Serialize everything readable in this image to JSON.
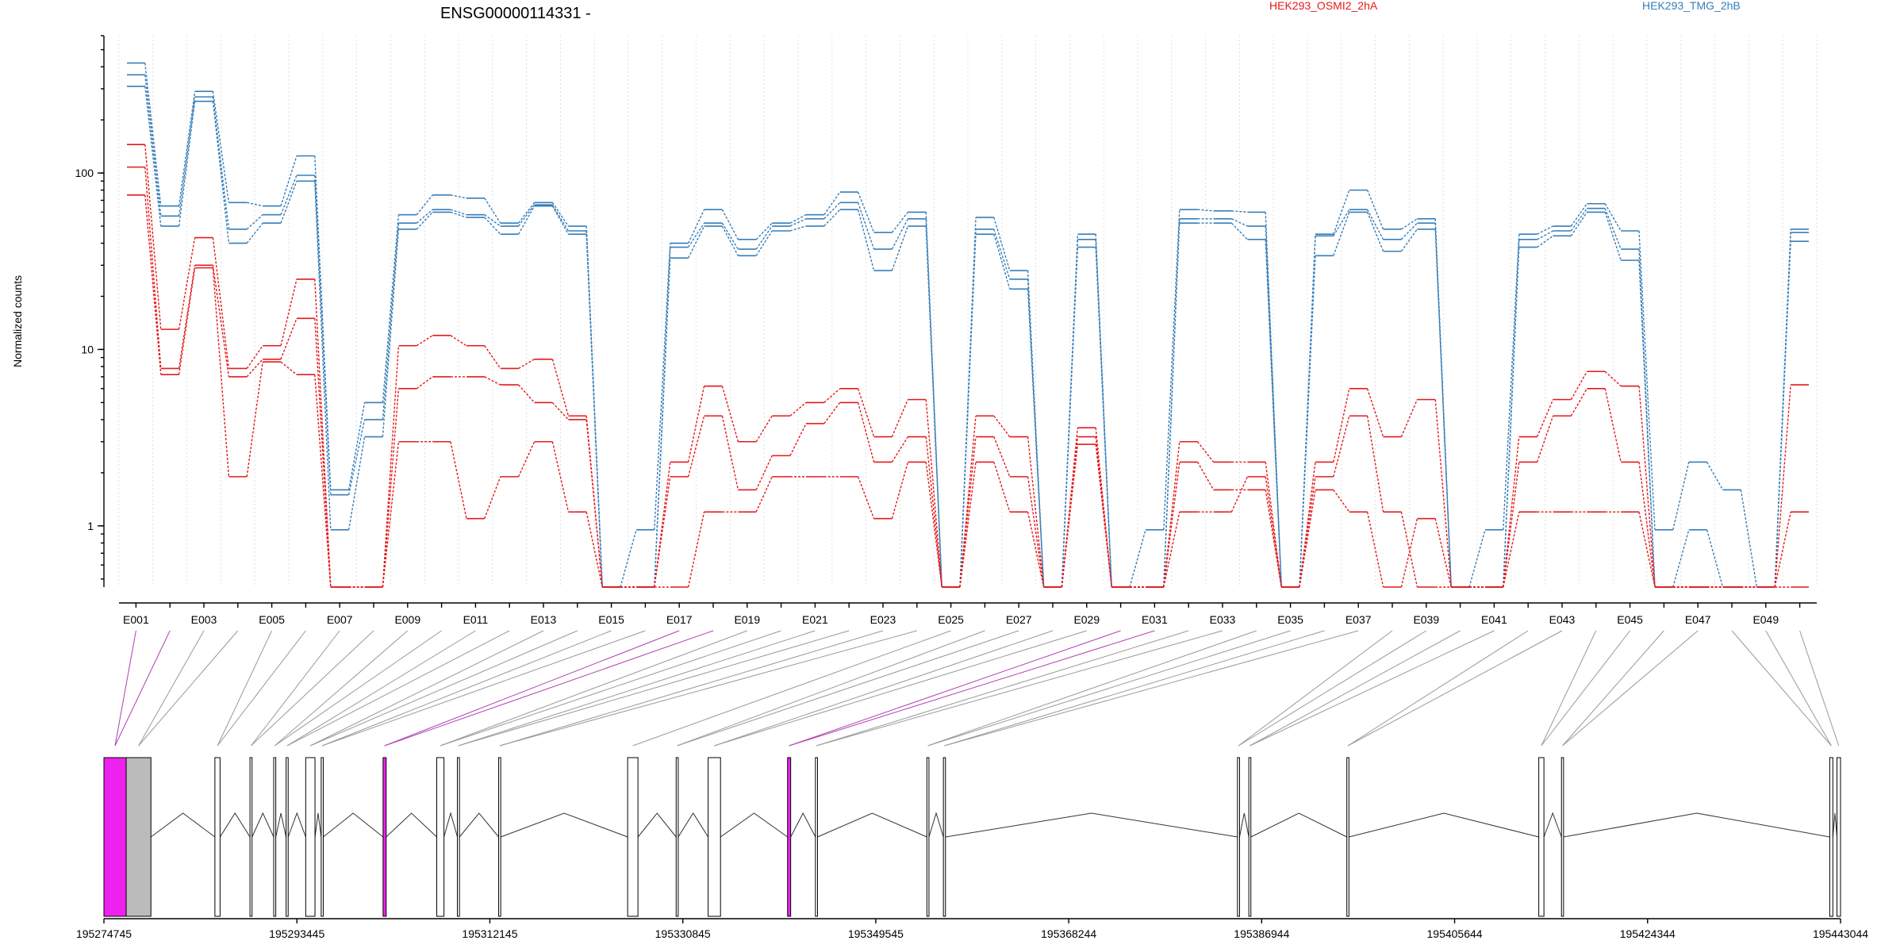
{
  "chart_data": {
    "type": "line",
    "title": "ENSG00000114331 -",
    "ylabel": "Normalized counts",
    "yscale": "log",
    "ylim": [
      0.45,
      600
    ],
    "yticks": [
      1,
      10,
      100
    ],
    "ytick_labels": [
      "1",
      "10",
      "100"
    ],
    "x": [
      "E001",
      "E002",
      "E003",
      "E004",
      "E005",
      "E006",
      "E007",
      "E008",
      "E009",
      "E010",
      "E011",
      "E012",
      "E013",
      "E014",
      "E015",
      "E016",
      "E017",
      "E018",
      "E019",
      "E020",
      "E021",
      "E022",
      "E023",
      "E024",
      "E025",
      "E026",
      "E027",
      "E028",
      "E029",
      "E030",
      "E031",
      "E032",
      "E033",
      "E034",
      "E035",
      "E036",
      "E037",
      "E038",
      "E039",
      "E040",
      "E041",
      "E042",
      "E043",
      "E044",
      "E045",
      "E046",
      "E047",
      "E048",
      "E049",
      "E050"
    ],
    "xtick_labels": [
      "E001",
      "E003",
      "E005",
      "E007",
      "E009",
      "E011",
      "E013",
      "E015",
      "E017",
      "E019",
      "E021",
      "E023",
      "E025",
      "E027",
      "E029",
      "E031",
      "E033",
      "E035",
      "E037",
      "E039",
      "E041",
      "E043",
      "E045",
      "E047",
      "E049"
    ],
    "legend": [
      {
        "name": "HEK293_OSMI2_2hA",
        "color": "#e41a1c"
      },
      {
        "name": "HEK293_TMG_2hB",
        "color": "#377eb8"
      }
    ],
    "legend_placement": "top",
    "series": [
      {
        "group": "HEK293_TMG_2hB",
        "color": "#377eb8",
        "values": [
          420,
          65,
          290,
          68,
          65,
          125,
          1.6,
          5,
          58,
          75,
          72,
          52,
          68,
          50,
          0.45,
          0.95,
          40,
          62,
          42,
          52,
          58,
          78,
          46,
          60,
          0.45,
          56,
          28,
          0.45,
          45,
          0.45,
          0.95,
          62,
          61,
          60,
          0.45,
          45,
          80,
          48,
          55,
          0.45,
          0.95,
          45,
          50,
          67,
          47,
          0.95,
          2.3,
          1.6,
          0.45,
          48
        ]
      },
      {
        "group": "HEK293_TMG_2hB",
        "color": "#377eb8",
        "values": [
          360,
          57,
          270,
          48,
          58,
          97,
          1.5,
          4,
          52,
          62,
          58,
          50,
          66,
          47,
          0.45,
          0.45,
          38,
          52,
          37,
          50,
          55,
          68,
          37,
          55,
          0.45,
          48,
          25,
          0.45,
          42,
          0.45,
          0.45,
          55,
          55,
          50,
          0.45,
          44,
          62,
          42,
          52,
          0.45,
          0.45,
          42,
          47,
          63,
          37,
          0.45,
          0.95,
          0.45,
          0.45,
          46
        ]
      },
      {
        "group": "HEK293_TMG_2hB",
        "color": "#377eb8",
        "values": [
          310,
          50,
          255,
          40,
          52,
          90,
          0.95,
          3.2,
          48,
          60,
          56,
          45,
          65,
          45,
          0.45,
          0.45,
          33,
          50,
          34,
          47,
          50,
          62,
          28,
          50,
          0.45,
          45,
          22,
          0.45,
          38,
          0.45,
          0.45,
          52,
          52,
          42,
          0.45,
          34,
          60,
          36,
          48,
          0.45,
          0.45,
          38,
          44,
          60,
          32,
          0.45,
          0.45,
          0.45,
          0.45,
          41
        ]
      },
      {
        "group": "HEK293_OSMI2_2hA",
        "color": "#e41a1c",
        "values": [
          145,
          13,
          43,
          7.8,
          10.5,
          25,
          0.45,
          0.45,
          10.5,
          12,
          10.5,
          7.8,
          8.8,
          4.2,
          0.45,
          0.45,
          2.3,
          6.2,
          3,
          4.2,
          5,
          6,
          3.2,
          5.2,
          0.45,
          4.2,
          3.2,
          0.45,
          3.6,
          0.45,
          0.45,
          3,
          2.3,
          2.3,
          0.45,
          2.3,
          6,
          3.2,
          5.2,
          0.45,
          0.45,
          3.2,
          5.2,
          7.5,
          6.2,
          0.45,
          0.45,
          0.45,
          0.45,
          6.3
        ]
      },
      {
        "group": "HEK293_OSMI2_2hA",
        "color": "#e41a1c",
        "values": [
          108,
          7.8,
          30,
          7,
          8.8,
          15,
          0.45,
          0.45,
          6,
          7,
          7,
          6.3,
          5,
          4,
          0.45,
          0.45,
          1.9,
          4.2,
          1.6,
          2.5,
          3.8,
          5,
          2.3,
          3.2,
          0.45,
          3.2,
          1.9,
          0.45,
          3.2,
          0.45,
          0.45,
          2.3,
          1.6,
          1.6,
          0.45,
          1.9,
          4.2,
          1.2,
          0.45,
          0.45,
          0.45,
          2.3,
          4.2,
          6,
          2.3,
          0.45,
          0.45,
          0.45,
          0.45,
          1.2
        ]
      },
      {
        "group": "HEK293_OSMI2_2hA",
        "color": "#e41a1c",
        "values": [
          75,
          7.2,
          29,
          1.9,
          8.5,
          7.2,
          0.45,
          0.45,
          3,
          3,
          1.1,
          1.9,
          3,
          1.2,
          0.45,
          0.45,
          0.45,
          1.2,
          1.2,
          1.9,
          1.9,
          1.9,
          1.1,
          2.3,
          0.45,
          2.3,
          1.2,
          0.45,
          2.9,
          0.45,
          0.45,
          1.2,
          1.2,
          1.9,
          0.45,
          1.6,
          1.2,
          0.45,
          1.1,
          0.45,
          0.45,
          1.2,
          1.2,
          1.2,
          1.2,
          0.45,
          0.45,
          0.45,
          0.45,
          0.45
        ]
      }
    ],
    "gene_model": {
      "coord_start": 195274745,
      "coord_end": 195443044,
      "ticks": [
        "195274745",
        "195293445",
        "195312145",
        "195330845",
        "195349545",
        "195368244",
        "195386944",
        "195405644",
        "195424344",
        "195443044"
      ],
      "tick_values": [
        195274745,
        195293445,
        195312145,
        195330845,
        195349545,
        195368244,
        195386944,
        195405644,
        195424344,
        195443044
      ],
      "highlight_color": "#ee22ee",
      "exons": [
        {
          "start": 195274745,
          "end": 195276900,
          "fill": "#ee22ee"
        },
        {
          "start": 195276900,
          "end": 195279300,
          "fill": "#bbbbbb"
        },
        {
          "start": 195285500,
          "end": 195286000,
          "fill": "#ffffff"
        },
        {
          "start": 195288900,
          "end": 195289100,
          "fill": "#ffffff"
        },
        {
          "start": 195291200,
          "end": 195291400,
          "fill": "#ffffff"
        },
        {
          "start": 195292400,
          "end": 195292600,
          "fill": "#ffffff"
        },
        {
          "start": 195294300,
          "end": 195295200,
          "fill": "#ffffff"
        },
        {
          "start": 195295800,
          "end": 195296000,
          "fill": "#ffffff"
        },
        {
          "start": 195301800,
          "end": 195302100,
          "fill": "#ee22ee"
        },
        {
          "start": 195307000,
          "end": 195307700,
          "fill": "#ffffff"
        },
        {
          "start": 195309000,
          "end": 195309200,
          "fill": "#ffffff"
        },
        {
          "start": 195313000,
          "end": 195313200,
          "fill": "#ffffff"
        },
        {
          "start": 195325500,
          "end": 195326500,
          "fill": "#ffffff"
        },
        {
          "start": 195330200,
          "end": 195330400,
          "fill": "#ffffff"
        },
        {
          "start": 195333300,
          "end": 195334500,
          "fill": "#ffffff"
        },
        {
          "start": 195341000,
          "end": 195341300,
          "fill": "#ee22ee"
        },
        {
          "start": 195343700,
          "end": 195343900,
          "fill": "#ffffff"
        },
        {
          "start": 195354500,
          "end": 195354700,
          "fill": "#ffffff"
        },
        {
          "start": 195356100,
          "end": 195356300,
          "fill": "#ffffff"
        },
        {
          "start": 195384600,
          "end": 195384800,
          "fill": "#ffffff"
        },
        {
          "start": 195385700,
          "end": 195385900,
          "fill": "#ffffff"
        },
        {
          "start": 195395200,
          "end": 195395400,
          "fill": "#ffffff"
        },
        {
          "start": 195413800,
          "end": 195414300,
          "fill": "#ffffff"
        },
        {
          "start": 195416000,
          "end": 195416200,
          "fill": "#ffffff"
        },
        {
          "start": 195442000,
          "end": 195442300,
          "fill": "#ffffff"
        },
        {
          "start": 195442700,
          "end": 195443044,
          "fill": "#ffffff"
        }
      ]
    }
  }
}
